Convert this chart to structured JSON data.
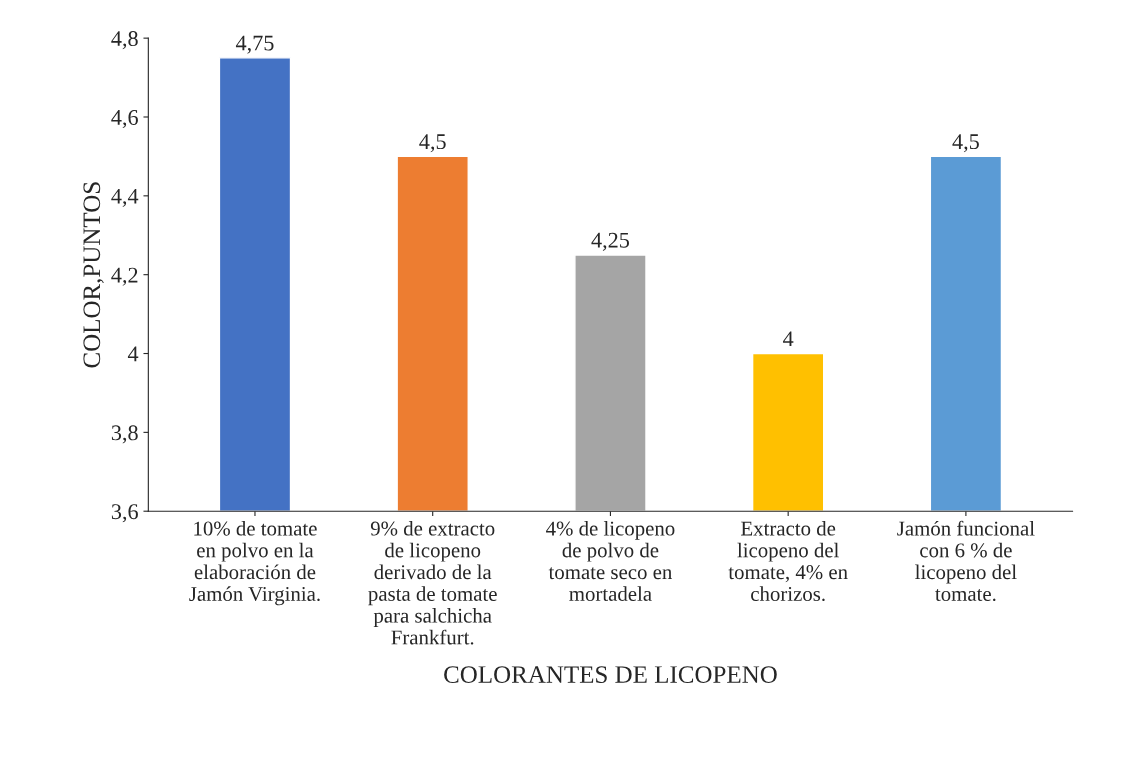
{
  "chart_data": {
    "type": "bar",
    "xlabel": "COLORANTES DE LICOPENO",
    "ylabel": "COLOR,PUNTOS",
    "categories": [
      "10% de tomate\nen polvo en la\nelaboración de\nJamón Virginia.",
      "9% de extracto\nde licopeno\nderivado de la\npasta de tomate\npara salchicha\nFrankfurt.",
      "4% de licopeno\nde polvo de\ntomate seco en\nmortadela",
      "Extracto de\nlicopeno del\ntomate, 4% en\nchorizos.",
      "Jamón funcional\ncon 6 % de\nlicopeno del\ntomate."
    ],
    "values": [
      4.75,
      4.5,
      4.25,
      4,
      4.5
    ],
    "value_labels": [
      "4,75",
      "4,5",
      "4,25",
      "4",
      "4,5"
    ],
    "colors": [
      "#4472c4",
      "#ed7d31",
      "#a5a5a5",
      "#ffc000",
      "#5b9bd5"
    ],
    "ylim": [
      3.6,
      4.8
    ],
    "yticks": [
      {
        "value": 3.6,
        "label": "3,6"
      },
      {
        "value": 3.8,
        "label": "3,8"
      },
      {
        "value": 4,
        "label": "4"
      },
      {
        "value": 4.2,
        "label": "4,2"
      },
      {
        "value": 4.4,
        "label": "4,4"
      },
      {
        "value": 4.6,
        "label": "4,6"
      },
      {
        "value": 4.8,
        "label": "4,8"
      }
    ],
    "grid": false,
    "legend": false
  }
}
